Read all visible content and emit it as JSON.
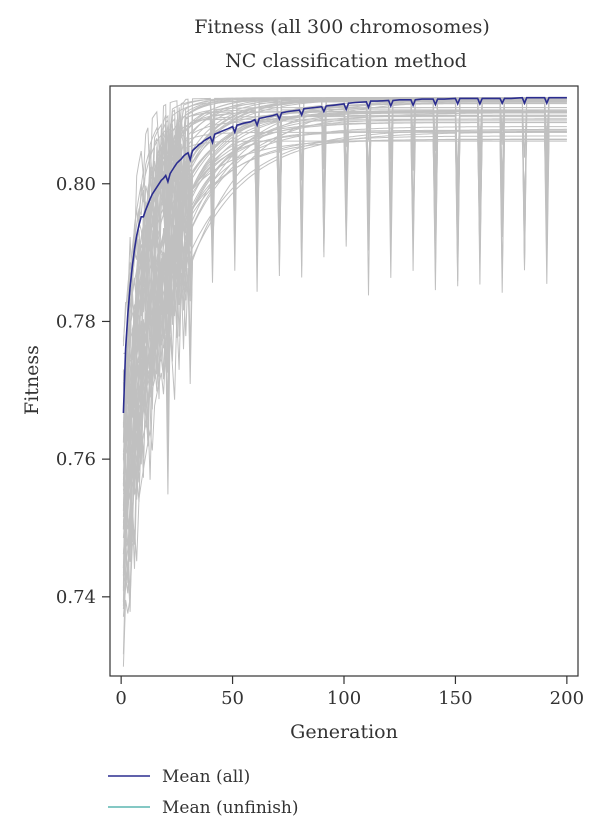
{
  "chart_data": {
    "type": "line",
    "title": [
      "Fitness (all 300 chromosomes)",
      "NC classification method"
    ],
    "xlabel": "Generation",
    "ylabel": "Fitness",
    "xlim": [
      -5,
      205
    ],
    "ylim": [
      0.7285,
      0.8142
    ],
    "xticks": [
      0,
      50,
      100,
      150,
      200
    ],
    "xtick_labels": [
      "0",
      "50",
      "100",
      "150",
      "200"
    ],
    "yticks": [
      0.74,
      0.76,
      0.78,
      0.8
    ],
    "ytick_labels": [
      "0.74",
      "0.76",
      "0.78",
      "0.80"
    ],
    "grid": false,
    "legend_position": "bottom-left",
    "chromosome_color": "#c0c0c0",
    "chromosome_count_shown": 60,
    "series": [
      {
        "name": "Mean (all)",
        "color": "#2b2d8f",
        "x": [
          1,
          2,
          3,
          4,
          5,
          6,
          7,
          8,
          9,
          10,
          11,
          12,
          13,
          14,
          15,
          16,
          17,
          18,
          19,
          20,
          21,
          22,
          23,
          24,
          25,
          26,
          27,
          28,
          29,
          30,
          31,
          32,
          33,
          34,
          35,
          36,
          37,
          38,
          39,
          40,
          41,
          42,
          45,
          48,
          50,
          51,
          52,
          55,
          58,
          60,
          61,
          62,
          65,
          68,
          70,
          71,
          72,
          75,
          80,
          81,
          82,
          85,
          90,
          91,
          92,
          95,
          100,
          101,
          102,
          105,
          110,
          111,
          112,
          115,
          120,
          121,
          122,
          125,
          130,
          131,
          132,
          135,
          140,
          141,
          142,
          145,
          150,
          151,
          152,
          155,
          160,
          161,
          162,
          165,
          170,
          171,
          172,
          175,
          180,
          181,
          182,
          185,
          190,
          191,
          192,
          195,
          200
        ],
        "values": [
          0.7667,
          0.776,
          0.781,
          0.785,
          0.788,
          0.7905,
          0.7925,
          0.794,
          0.7952,
          0.7952,
          0.7962,
          0.797,
          0.7978,
          0.7985,
          0.799,
          0.7995,
          0.8,
          0.8005,
          0.8008,
          0.8012,
          0.8003,
          0.8015,
          0.802,
          0.8025,
          0.803,
          0.8033,
          0.8036,
          0.804,
          0.8043,
          0.8045,
          0.8035,
          0.8048,
          0.8051,
          0.8054,
          0.8057,
          0.8059,
          0.8062,
          0.8064,
          0.8066,
          0.8068,
          0.806,
          0.8072,
          0.8076,
          0.808,
          0.8083,
          0.8075,
          0.8085,
          0.8088,
          0.809,
          0.8093,
          0.8085,
          0.8095,
          0.8097,
          0.8099,
          0.8101,
          0.8094,
          0.8103,
          0.8105,
          0.8107,
          0.81,
          0.8109,
          0.811,
          0.8112,
          0.8105,
          0.8113,
          0.8114,
          0.8116,
          0.8108,
          0.8117,
          0.8118,
          0.8119,
          0.8111,
          0.812,
          0.812,
          0.8121,
          0.8113,
          0.8121,
          0.8122,
          0.8122,
          0.8114,
          0.8122,
          0.8123,
          0.8123,
          0.8115,
          0.8123,
          0.8123,
          0.8124,
          0.8116,
          0.8124,
          0.8124,
          0.8124,
          0.8116,
          0.8124,
          0.8124,
          0.8124,
          0.8117,
          0.8124,
          0.8124,
          0.8125,
          0.8117,
          0.8125,
          0.8125,
          0.8125,
          0.8117,
          0.8125,
          0.8125,
          0.8125
        ]
      },
      {
        "name": "Mean (unfinish)",
        "color": "#5bb5b0",
        "x": [],
        "values": []
      }
    ]
  }
}
